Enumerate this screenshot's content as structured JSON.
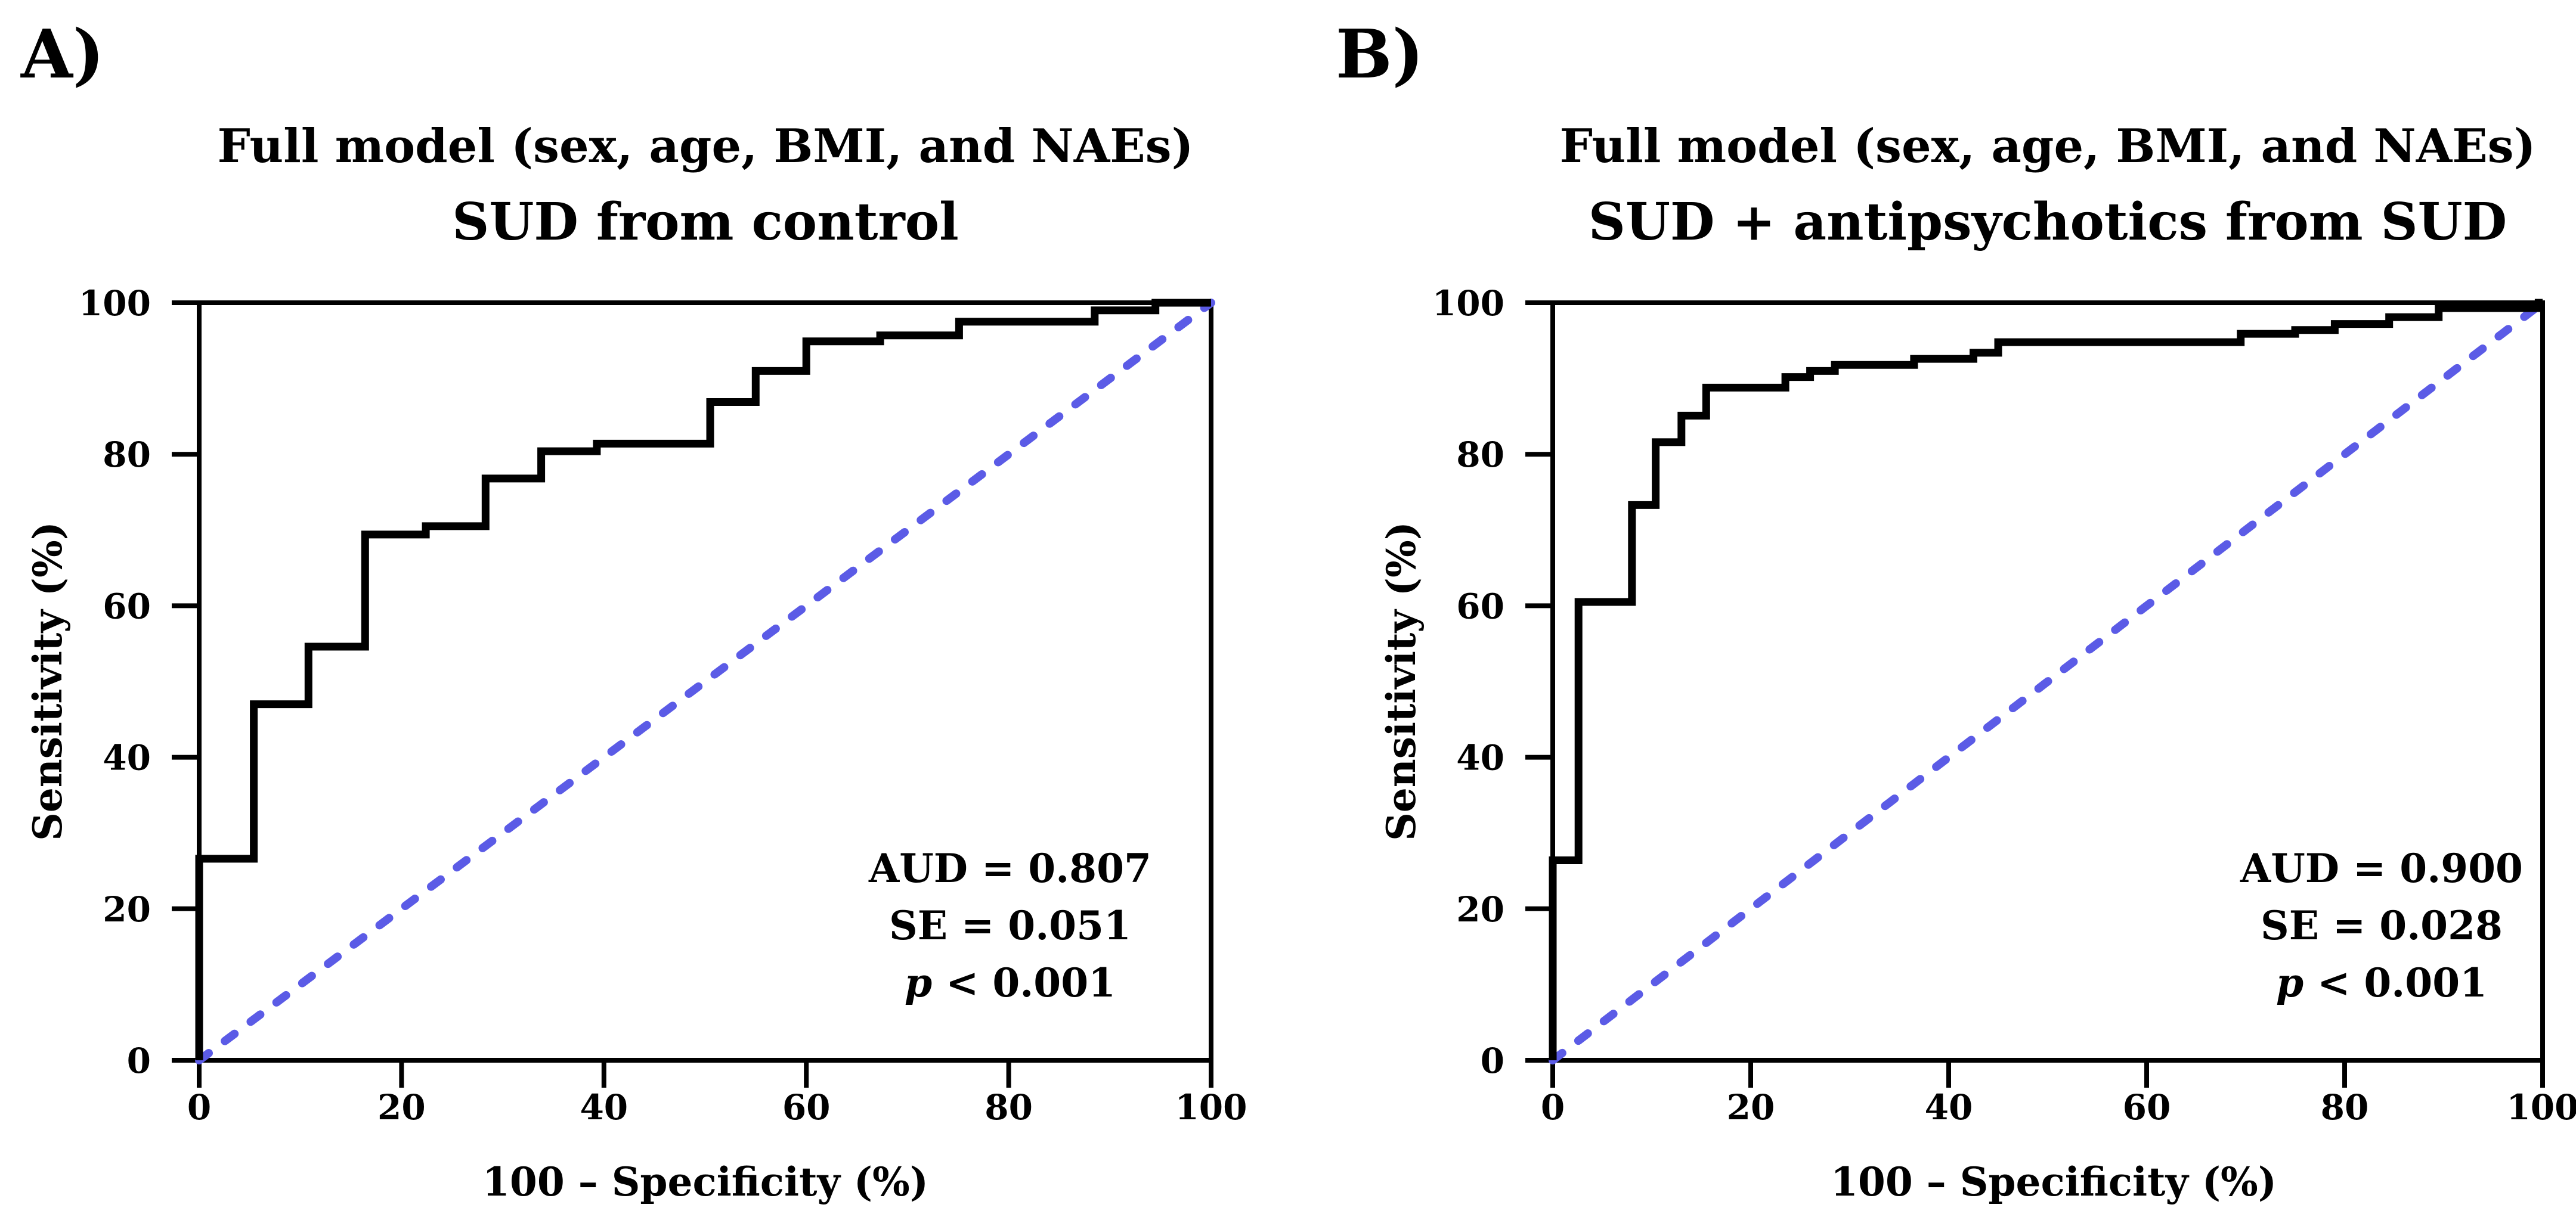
{
  "figure": {
    "background": "#ffffff",
    "text_color": "#000000",
    "curve_color": "#000000",
    "diagonal_color": "#5b5be6"
  },
  "panels": [
    {
      "label": "A)",
      "title_line1": "Full model (sex, age, BMI, and NAEs)",
      "title_line2": "SUD from control",
      "xlabel": "100 – Specificity (%)",
      "ylabel": "Sensitivity (%)",
      "annotation": {
        "line1": "AUD = 0.807",
        "line2": "SE = 0.051",
        "p_var": "p",
        "p_rest": " < 0.001"
      }
    },
    {
      "label": "B)",
      "title_line1": "Full model (sex, age, BMI, and NAEs)",
      "title_line2": "SUD + antipsychotics from SUD",
      "xlabel": "100 – Specificity (%)",
      "ylabel": "Sensitivity (%)",
      "annotation": {
        "line1": "AUD = 0.900",
        "line2": "SE = 0.028",
        "p_var": "p",
        "p_rest": " < 0.001"
      }
    }
  ],
  "chart_data": [
    {
      "type": "line",
      "subtype": "roc-step-curve",
      "panel": "A",
      "title": "Full model (sex, age, BMI, and NAEs) — SUD from control",
      "xlabel": "100 – Specificity (%)",
      "ylabel": "Sensitivity (%)",
      "xlim": [
        0,
        100
      ],
      "ylim": [
        0,
        100
      ],
      "x_ticks": [
        0,
        20,
        40,
        60,
        80,
        100
      ],
      "y_ticks": [
        0,
        20,
        40,
        60,
        80,
        100
      ],
      "grid": false,
      "legend": "none",
      "plot_frame": "full-box",
      "series": [
        {
          "name": "ROC curve",
          "style": "solid-step",
          "color": "#000000",
          "points": [
            [
              0,
              0
            ],
            [
              0,
              26.6
            ],
            [
              5.4,
              26.6
            ],
            [
              5.4,
              47
            ],
            [
              10.8,
              47
            ],
            [
              10.8,
              54.6
            ],
            [
              16.4,
              54.6
            ],
            [
              16.4,
              69.4
            ],
            [
              22.4,
              69.4
            ],
            [
              22.4,
              70.5
            ],
            [
              28.3,
              70.5
            ],
            [
              28.3,
              76.8
            ],
            [
              33.8,
              76.8
            ],
            [
              33.8,
              80.4
            ],
            [
              39.3,
              80.4
            ],
            [
              39.3,
              81.4
            ],
            [
              50.5,
              81.4
            ],
            [
              50.5,
              86.9
            ],
            [
              55,
              86.9
            ],
            [
              55,
              91
            ],
            [
              60,
              91
            ],
            [
              60,
              94.9
            ],
            [
              67.3,
              94.9
            ],
            [
              67.3,
              95.7
            ],
            [
              75.1,
              95.7
            ],
            [
              75.1,
              97.5
            ],
            [
              88.5,
              97.5
            ],
            [
              88.5,
              99
            ],
            [
              94.5,
              99
            ],
            [
              94.5,
              100
            ],
            [
              100,
              100
            ]
          ]
        },
        {
          "name": "Chance reference diagonal",
          "style": "dashed",
          "color": "#5b5be6",
          "points": [
            [
              0,
              0
            ],
            [
              100,
              100
            ]
          ]
        }
      ],
      "annotations": [
        "AUD = 0.807",
        "SE = 0.051",
        "p < 0.001"
      ],
      "stats": {
        "AUD": 0.807,
        "SE": 0.051,
        "p": "< 0.001"
      }
    },
    {
      "type": "line",
      "subtype": "roc-step-curve",
      "panel": "B",
      "title": "Full model (sex, age, BMI, and NAEs) — SUD + antipsychotics from SUD",
      "xlabel": "100 – Specificity (%)",
      "ylabel": "Sensitivity (%)",
      "xlim": [
        0,
        100
      ],
      "ylim": [
        0,
        100
      ],
      "x_ticks": [
        0,
        20,
        40,
        60,
        80,
        100
      ],
      "y_ticks": [
        0,
        20,
        40,
        60,
        80,
        100
      ],
      "grid": false,
      "legend": "none",
      "plot_frame": "full-box",
      "series": [
        {
          "name": "ROC curve",
          "style": "solid-step",
          "color": "#000000",
          "points": [
            [
              0,
              0
            ],
            [
              0,
              26.4
            ],
            [
              2.6,
              26.4
            ],
            [
              2.6,
              60.5
            ],
            [
              8,
              60.5
            ],
            [
              8,
              73.3
            ],
            [
              10.4,
              73.3
            ],
            [
              10.4,
              81.6
            ],
            [
              13,
              81.6
            ],
            [
              13,
              85.1
            ],
            [
              15.5,
              85.1
            ],
            [
              15.5,
              88.8
            ],
            [
              23.5,
              88.8
            ],
            [
              23.5,
              90.2
            ],
            [
              26,
              90.2
            ],
            [
              26,
              91
            ],
            [
              28.5,
              91
            ],
            [
              28.5,
              91.8
            ],
            [
              36.5,
              91.8
            ],
            [
              36.5,
              92.6
            ],
            [
              42.5,
              92.6
            ],
            [
              42.5,
              93.4
            ],
            [
              45,
              93.4
            ],
            [
              45,
              94.8
            ],
            [
              69.5,
              94.8
            ],
            [
              69.5,
              95.9
            ],
            [
              75,
              95.9
            ],
            [
              75,
              96.4
            ],
            [
              79,
              96.4
            ],
            [
              79,
              97.2
            ],
            [
              84.5,
              97.2
            ],
            [
              84.5,
              98.1
            ],
            [
              89.5,
              98.1
            ],
            [
              89.5,
              99.3
            ],
            [
              99.6,
              99.3
            ],
            [
              99.6,
              100
            ],
            [
              100,
              100
            ]
          ]
        },
        {
          "name": "Chance reference diagonal",
          "style": "dashed",
          "color": "#5b5be6",
          "points": [
            [
              0,
              0
            ],
            [
              100,
              100
            ]
          ]
        }
      ],
      "annotations": [
        "AUD = 0.900",
        "SE = 0.028",
        "p < 0.001"
      ],
      "stats": {
        "AUD": 0.9,
        "SE": 0.028,
        "p": "< 0.001"
      }
    }
  ]
}
